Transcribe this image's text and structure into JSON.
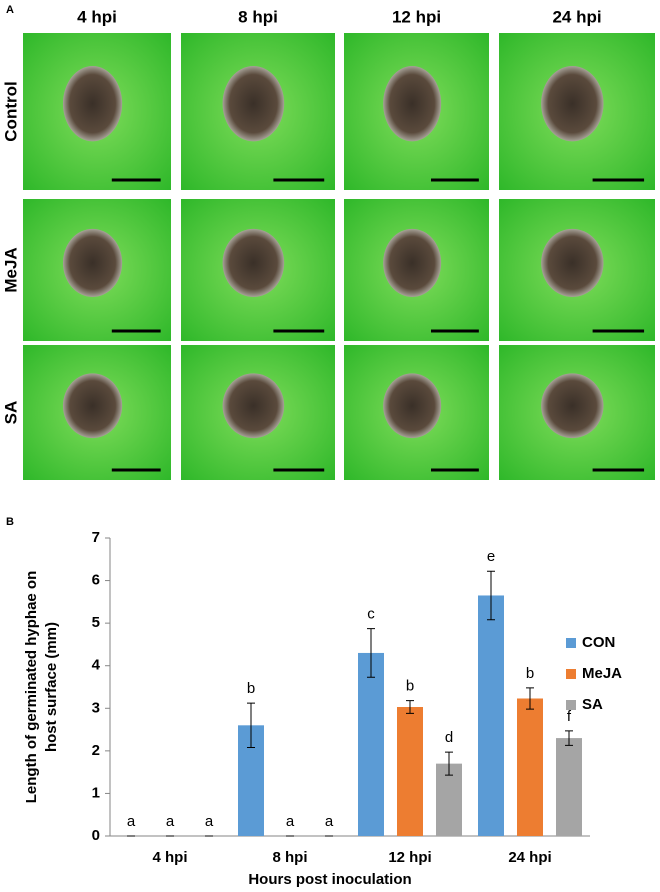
{
  "panel_a": {
    "label": "A",
    "columns": [
      "4 hpi",
      "8 hpi",
      "12 hpi",
      "24 hpi"
    ],
    "rows": [
      "Control",
      "MeJA",
      "SA"
    ]
  },
  "chart_data": {
    "type": "bar",
    "panel_label": "B",
    "xlabel": "Hours post inoculation",
    "ylabel": [
      "Length of germinated hyphae on",
      "host surface (mm)"
    ],
    "categories": [
      "4 hpi",
      "8 hpi",
      "12 hpi",
      "24 hpi"
    ],
    "ylim": [
      0,
      7
    ],
    "yticks": [
      0,
      1,
      2,
      3,
      4,
      5,
      6,
      7
    ],
    "grid": false,
    "legend": "right",
    "series": [
      {
        "name": "CON",
        "color": "#5b9bd5",
        "values": [
          0,
          2.6,
          4.3,
          5.65
        ],
        "errors": [
          0,
          0.52,
          0.57,
          0.57
        ],
        "letters": [
          "a",
          "b",
          "c",
          "e"
        ]
      },
      {
        "name": "MeJA",
        "color": "#ed7d31",
        "values": [
          0,
          0,
          3.03,
          3.23
        ],
        "errors": [
          0,
          0,
          0.15,
          0.25
        ],
        "letters": [
          "a",
          "a",
          "b",
          "b"
        ]
      },
      {
        "name": "SA",
        "color": "#a5a5a5",
        "values": [
          0,
          0,
          1.7,
          2.3
        ],
        "errors": [
          0,
          0,
          0.27,
          0.17
        ],
        "letters": [
          "a",
          "a",
          "d",
          "f"
        ]
      }
    ]
  }
}
